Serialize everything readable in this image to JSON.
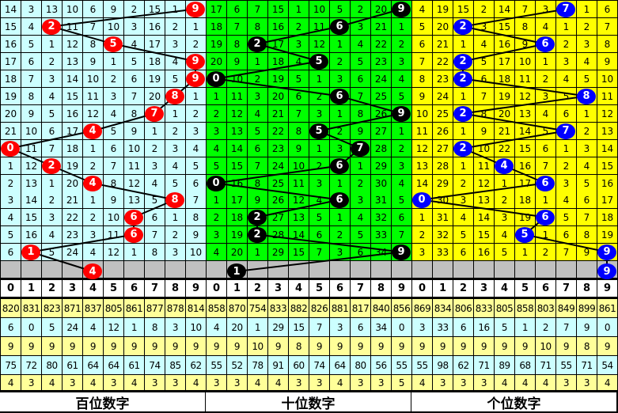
{
  "chart_data": {
    "type": "table",
    "digit_header": [
      "0",
      "1",
      "2",
      "3",
      "4",
      "5",
      "6",
      "7",
      "8",
      "9"
    ],
    "panels": [
      {
        "title": "百位数字",
        "background": "#ccffff",
        "ball_color": "#ff0000",
        "rows": [
          [
            "14",
            "3",
            "13",
            "10",
            "6",
            "9",
            "2",
            "15",
            "1",
            "9"
          ],
          [
            "15",
            "4",
            "2",
            "11",
            "7",
            "10",
            "3",
            "16",
            "2",
            "1"
          ],
          [
            "16",
            "5",
            "1",
            "12",
            "8",
            "5",
            "4",
            "17",
            "3",
            "2"
          ],
          [
            "17",
            "6",
            "2",
            "13",
            "9",
            "1",
            "5",
            "18",
            "4",
            "9"
          ],
          [
            "18",
            "7",
            "3",
            "14",
            "10",
            "2",
            "6",
            "19",
            "5",
            "9"
          ],
          [
            "19",
            "8",
            "4",
            "15",
            "11",
            "3",
            "7",
            "20",
            "8",
            "1"
          ],
          [
            "20",
            "9",
            "5",
            "16",
            "12",
            "4",
            "8",
            "7",
            "1",
            "2"
          ],
          [
            "21",
            "10",
            "6",
            "17",
            "4",
            "5",
            "9",
            "1",
            "2",
            "3"
          ],
          [
            "0",
            "11",
            "7",
            "18",
            "1",
            "6",
            "10",
            "2",
            "3",
            "4"
          ],
          [
            "1",
            "12",
            "2",
            "19",
            "2",
            "7",
            "11",
            "3",
            "4",
            "5"
          ],
          [
            "2",
            "13",
            "1",
            "20",
            "4",
            "8",
            "12",
            "4",
            "5",
            "6"
          ],
          [
            "3",
            "14",
            "2",
            "21",
            "1",
            "9",
            "13",
            "5",
            "8",
            "7"
          ],
          [
            "4",
            "15",
            "3",
            "22",
            "2",
            "10",
            "6",
            "6",
            "1",
            "8"
          ],
          [
            "5",
            "16",
            "4",
            "23",
            "3",
            "11",
            "6",
            "7",
            "2",
            "9"
          ],
          [
            "6",
            "1",
            "5",
            "24",
            "4",
            "12",
            "1",
            "8",
            "3",
            "10"
          ]
        ],
        "hits": [
          9,
          2,
          5,
          9,
          9,
          8,
          7,
          4,
          0,
          2,
          4,
          8,
          6,
          6,
          1
        ],
        "next_marker": "4",
        "stats": [
          [
            "820",
            "831",
            "823",
            "871",
            "837",
            "805",
            "861",
            "877",
            "878",
            "814"
          ],
          [
            "6",
            "0",
            "5",
            "24",
            "4",
            "12",
            "1",
            "8",
            "3",
            "10"
          ],
          [
            "9",
            "9",
            "9",
            "9",
            "9",
            "9",
            "9",
            "9",
            "9",
            "9"
          ],
          [
            "75",
            "72",
            "80",
            "61",
            "64",
            "64",
            "61",
            "74",
            "85",
            "62"
          ],
          [
            "4",
            "3",
            "4",
            "3",
            "4",
            "3",
            "4",
            "3",
            "3",
            "4"
          ]
        ]
      },
      {
        "title": "十位数字",
        "background": "#00ff00",
        "ball_color": "#000000",
        "rows": [
          [
            "17",
            "6",
            "7",
            "15",
            "1",
            "10",
            "5",
            "2",
            "20",
            "9"
          ],
          [
            "18",
            "7",
            "8",
            "16",
            "2",
            "11",
            "6",
            "3",
            "21",
            "1"
          ],
          [
            "19",
            "8",
            "2",
            "17",
            "3",
            "12",
            "1",
            "4",
            "22",
            "2"
          ],
          [
            "20",
            "9",
            "1",
            "18",
            "4",
            "5",
            "2",
            "5",
            "23",
            "3"
          ],
          [
            "0",
            "10",
            "2",
            "19",
            "5",
            "1",
            "3",
            "6",
            "24",
            "4"
          ],
          [
            "1",
            "11",
            "3",
            "20",
            "6",
            "2",
            "6",
            "7",
            "25",
            "5"
          ],
          [
            "2",
            "12",
            "4",
            "21",
            "7",
            "3",
            "1",
            "8",
            "26",
            "9"
          ],
          [
            "3",
            "13",
            "5",
            "22",
            "8",
            "5",
            "2",
            "9",
            "27",
            "1"
          ],
          [
            "4",
            "14",
            "6",
            "23",
            "9",
            "1",
            "3",
            "7",
            "28",
            "2"
          ],
          [
            "5",
            "15",
            "7",
            "24",
            "10",
            "2",
            "6",
            "1",
            "29",
            "3"
          ],
          [
            "0",
            "16",
            "8",
            "25",
            "11",
            "3",
            "1",
            "2",
            "30",
            "4"
          ],
          [
            "1",
            "17",
            "9",
            "26",
            "12",
            "4",
            "6",
            "3",
            "31",
            "5"
          ],
          [
            "2",
            "18",
            "2",
            "27",
            "13",
            "5",
            "1",
            "4",
            "32",
            "6"
          ],
          [
            "3",
            "19",
            "2",
            "28",
            "14",
            "6",
            "2",
            "5",
            "33",
            "7"
          ],
          [
            "4",
            "20",
            "1",
            "29",
            "15",
            "7",
            "3",
            "6",
            "34",
            "9"
          ]
        ],
        "hits": [
          9,
          6,
          2,
          5,
          0,
          6,
          9,
          5,
          7,
          6,
          0,
          6,
          2,
          2,
          9
        ],
        "next_marker": "1",
        "stats": [
          [
            "858",
            "870",
            "754",
            "833",
            "882",
            "826",
            "881",
            "817",
            "840",
            "856"
          ],
          [
            "4",
            "20",
            "1",
            "29",
            "15",
            "7",
            "3",
            "6",
            "34",
            "0"
          ],
          [
            "9",
            "9",
            "10",
            "9",
            "8",
            "9",
            "9",
            "9",
            "9",
            "9"
          ],
          [
            "55",
            "52",
            "78",
            "91",
            "60",
            "74",
            "64",
            "80",
            "56",
            "55"
          ],
          [
            "3",
            "3",
            "4",
            "4",
            "3",
            "3",
            "4",
            "3",
            "3",
            "5"
          ]
        ]
      },
      {
        "title": "个位数字",
        "background": "#ffff00",
        "ball_color": "#0000ff",
        "rows": [
          [
            "4",
            "19",
            "15",
            "2",
            "14",
            "7",
            "3",
            "7",
            "1",
            "6"
          ],
          [
            "5",
            "20",
            "2",
            "3",
            "15",
            "8",
            "4",
            "1",
            "2",
            "7"
          ],
          [
            "6",
            "21",
            "1",
            "4",
            "16",
            "9",
            "6",
            "2",
            "3",
            "8"
          ],
          [
            "7",
            "22",
            "2",
            "5",
            "17",
            "10",
            "1",
            "3",
            "4",
            "9"
          ],
          [
            "8",
            "23",
            "2",
            "6",
            "18",
            "11",
            "2",
            "4",
            "5",
            "10"
          ],
          [
            "9",
            "24",
            "1",
            "7",
            "19",
            "12",
            "3",
            "5",
            "8",
            "11"
          ],
          [
            "10",
            "25",
            "2",
            "8",
            "20",
            "13",
            "4",
            "6",
            "1",
            "12"
          ],
          [
            "11",
            "26",
            "1",
            "9",
            "21",
            "14",
            "5",
            "7",
            "2",
            "13"
          ],
          [
            "12",
            "27",
            "2",
            "10",
            "22",
            "15",
            "6",
            "1",
            "3",
            "14"
          ],
          [
            "13",
            "28",
            "1",
            "11",
            "4",
            "16",
            "7",
            "2",
            "4",
            "15"
          ],
          [
            "14",
            "29",
            "2",
            "12",
            "1",
            "17",
            "6",
            "3",
            "5",
            "16"
          ],
          [
            "0",
            "30",
            "3",
            "13",
            "2",
            "18",
            "1",
            "4",
            "6",
            "17"
          ],
          [
            "1",
            "31",
            "4",
            "14",
            "3",
            "19",
            "6",
            "5",
            "7",
            "18"
          ],
          [
            "2",
            "32",
            "5",
            "15",
            "4",
            "5",
            "1",
            "6",
            "8",
            "19"
          ],
          [
            "3",
            "33",
            "6",
            "16",
            "5",
            "1",
            "2",
            "7",
            "9",
            "9"
          ]
        ],
        "hits": [
          7,
          2,
          6,
          2,
          2,
          8,
          2,
          7,
          2,
          4,
          6,
          0,
          6,
          5,
          9
        ],
        "next_marker": "9",
        "stats": [
          [
            "869",
            "834",
            "806",
            "833",
            "805",
            "858",
            "803",
            "849",
            "899",
            "861"
          ],
          [
            "3",
            "33",
            "6",
            "16",
            "5",
            "1",
            "2",
            "7",
            "9",
            "0"
          ],
          [
            "9",
            "9",
            "9",
            "9",
            "9",
            "9",
            "10",
            "9",
            "8",
            "9"
          ],
          [
            "55",
            "98",
            "62",
            "71",
            "89",
            "68",
            "71",
            "55",
            "71",
            "54"
          ],
          [
            "4",
            "3",
            "3",
            "3",
            "4",
            "4",
            "4",
            "3",
            "3",
            "4"
          ]
        ]
      }
    ],
    "stat_row_colors": [
      "#ffff99",
      "#ccffff",
      "#ffff99",
      "#ccffff",
      "#ffff99"
    ]
  }
}
